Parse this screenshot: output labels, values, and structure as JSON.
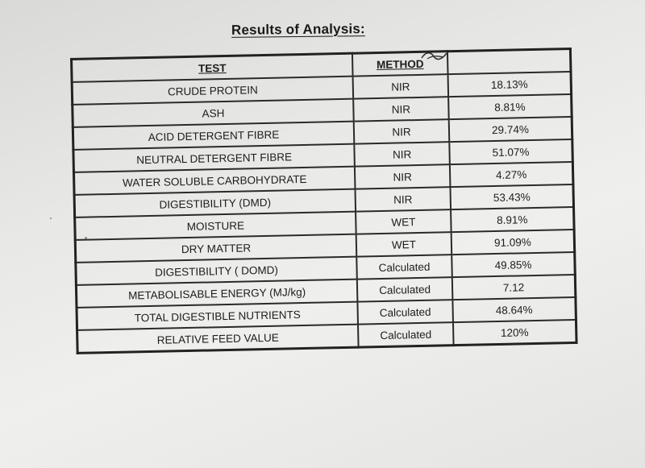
{
  "document": {
    "heading": "Results of Analysis:"
  },
  "table": {
    "headers": {
      "test": "TEST",
      "method": "METHOD",
      "value": ""
    },
    "rows": [
      {
        "test": "CRUDE PROTEIN",
        "method": "NIR",
        "value": "18.13%"
      },
      {
        "test": "ASH",
        "method": "NIR",
        "value": "8.81%"
      },
      {
        "test": "ACID DETERGENT FIBRE",
        "method": "NIR",
        "value": "29.74%"
      },
      {
        "test": "NEUTRAL DETERGENT FIBRE",
        "method": "NIR",
        "value": "51.07%"
      },
      {
        "test": "WATER SOLUBLE CARBOHYDRATE",
        "method": "NIR",
        "value": "4.27%"
      },
      {
        "test": "DIGESTIBILITY (DMD)",
        "method": "NIR",
        "value": "53.43%"
      },
      {
        "test": "MOISTURE",
        "method": "WET",
        "value": "8.91%"
      },
      {
        "test": "DRY MATTER",
        "method": "WET",
        "value": "91.09%"
      },
      {
        "test": "DIGESTIBILITY ( DOMD)",
        "method": "Calculated",
        "value": "49.85%"
      },
      {
        "test": "METABOLISABLE ENERGY (MJ/kg)",
        "method": "Calculated",
        "value": "7.12"
      },
      {
        "test": "TOTAL DIGESTIBLE NUTRIENTS",
        "method": "Calculated",
        "value": "48.64%"
      },
      {
        "test": "RELATIVE FEED VALUE",
        "method": "Calculated",
        "value": "120%"
      }
    ]
  }
}
